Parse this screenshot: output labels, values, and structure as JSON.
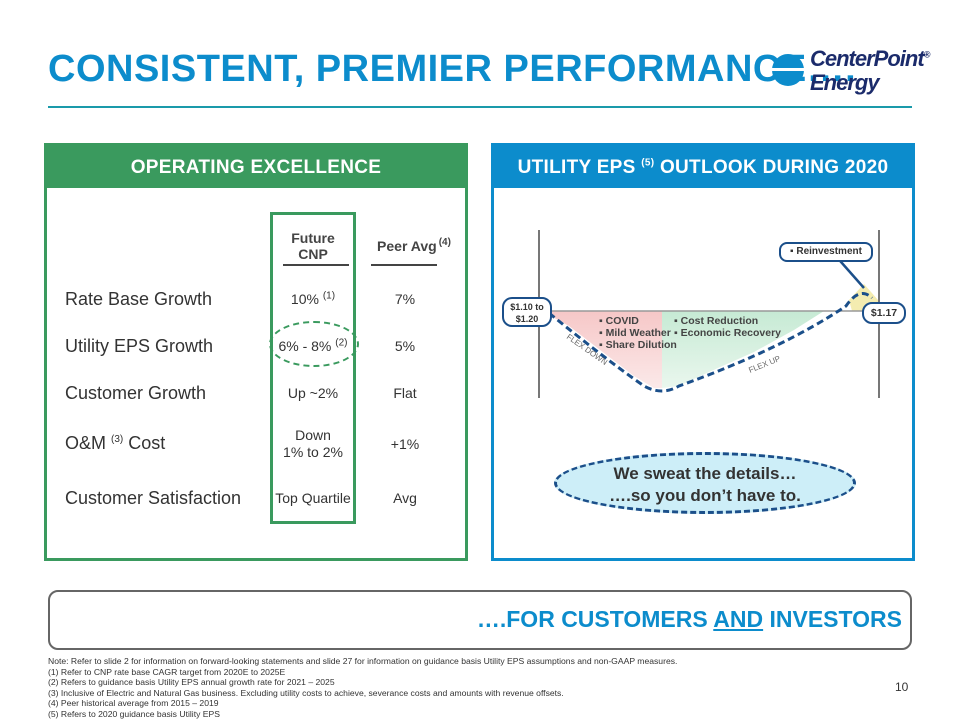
{
  "title": "CONSISTENT, PREMIER PERFORMANCE….",
  "logo": {
    "line1": "CenterPoint",
    "line2": "Energy",
    "mark": "®"
  },
  "left_panel": {
    "header": "OPERATING EXCELLENCE",
    "col1_head_line1": "Future",
    "col1_head_line2": "CNP",
    "col2_head": "Peer Avg",
    "col2_head_note": "(4)",
    "rows": [
      {
        "label": "Rate Base Growth",
        "label_note": "",
        "cnp": "10%",
        "cnp_note": "(1)",
        "peer": "7%"
      },
      {
        "label": "Utility EPS Growth",
        "label_note": "",
        "cnp": "6% - 8%",
        "cnp_note": "(2)",
        "peer": "5%"
      },
      {
        "label": "Customer Growth",
        "label_note": "",
        "cnp": "Up ~2%",
        "cnp_note": "",
        "peer": "Flat"
      },
      {
        "label": "O&M",
        "label_note": "(3)",
        "label_suffix": " Cost",
        "cnp_line1": "Down",
        "cnp_line2": "1% to 2%",
        "peer": "+1%"
      },
      {
        "label": "Customer Satisfaction",
        "label_note": "",
        "cnp": "Top Quartile",
        "cnp_note": "",
        "peer": "Avg"
      }
    ]
  },
  "right_panel": {
    "header_pre": "UTILITY EPS",
    "header_note": "(5)",
    "header_post": "OUTLOOK DURING 2020",
    "start_label_line1": "$1.10 to",
    "start_label_line2": "$1.20",
    "end_label": "$1.17",
    "reinvestment": "▪ Reinvestment",
    "flex_down": "FLEX DOWN",
    "flex_up": "FLEX UP",
    "down_items": [
      "▪ COVID",
      "▪ Mild Weather",
      "▪ Share Dilution"
    ],
    "up_items": [
      "▪ Cost Reduction",
      "▪ Economic Recovery"
    ],
    "bubble_line1": "We sweat the details…",
    "bubble_line2": "….so you don’t have to."
  },
  "bottom": {
    "pre": "….FOR CUSTOMERS ",
    "and": "AND",
    "post": " INVESTORS"
  },
  "notes": [
    "Note: Refer to slide 2 for information on forward-looking statements and slide 27 for information on guidance basis Utility EPS assumptions and non-GAAP measures.",
    "(1)    Refer to CNP rate base CAGR target from 2020E to 2025E",
    "(2)    Refers to guidance basis Utility EPS annual growth rate for 2021 – 2025",
    "(3)    Inclusive of Electric and Natural Gas business. Excluding utility costs to achieve, severance costs and amounts with revenue offsets.",
    "(4)    Peer historical average from 2015 – 2019",
    "(5)    Refers to 2020 guidance basis Utility EPS"
  ],
  "page_number": "10",
  "colors": {
    "blue": "#0c8ccc",
    "green": "#3a9a5e",
    "navy": "#1b4f8a"
  }
}
